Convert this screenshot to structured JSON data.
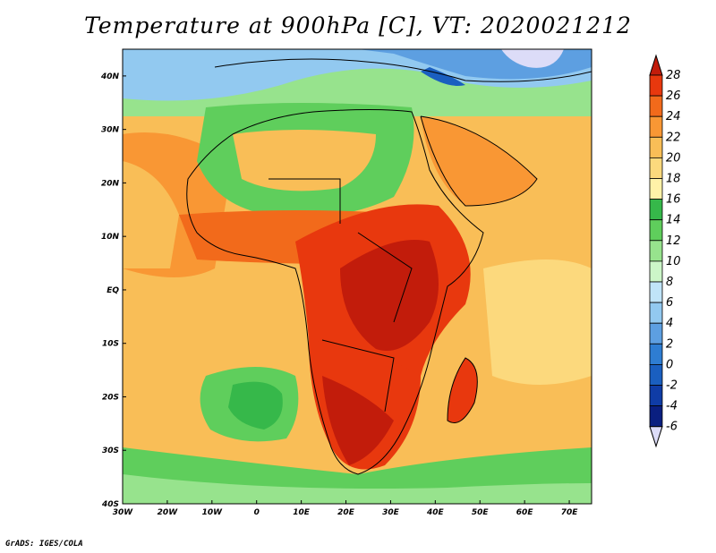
{
  "title": "Temperature at 900hPa [C], VT: 2020021212",
  "credit": "GrADS: IGES/COLA",
  "map": {
    "lon_range": [
      -30,
      75
    ],
    "lat_range": [
      -40,
      45
    ],
    "lon_ticks": [
      "30W",
      "20W",
      "10W",
      "0",
      "10E",
      "20E",
      "30E",
      "40E",
      "50E",
      "60E",
      "70E"
    ],
    "lat_ticks": [
      "40N",
      "30N",
      "20N",
      "10N",
      "EQ",
      "10S",
      "20S",
      "30S",
      "40S"
    ]
  },
  "colorbar": {
    "labels": [
      "28",
      "26",
      "24",
      "22",
      "20",
      "18",
      "16",
      "14",
      "12",
      "10",
      "8",
      "6",
      "4",
      "2",
      "0",
      "-2",
      "-4",
      "-6"
    ],
    "colors": [
      "#c21c0b",
      "#e8380e",
      "#f26a1b",
      "#f99734",
      "#f9be57",
      "#fcd97d",
      "#fff2a8",
      "#36b84a",
      "#5fce5c",
      "#97e38d",
      "#ccf6c8",
      "#c0e4f8",
      "#92c9f0",
      "#5d9fe1",
      "#2e7dd2",
      "#1a5fc0",
      "#0f3ca6",
      "#0a1f80",
      "#dcdcf8"
    ]
  }
}
